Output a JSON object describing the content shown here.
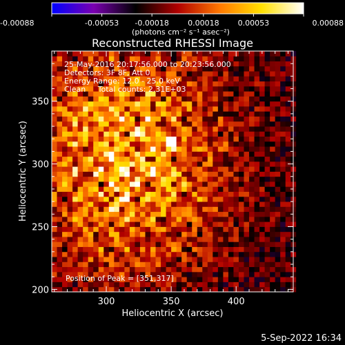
{
  "chart_data": {
    "type": "heatmap",
    "title": "Reconstructed RHESSI Image",
    "xlabel": "Heliocentric X (arcsec)",
    "ylabel": "Heliocentric Y (arcsec)",
    "xlim": [
      258,
      444
    ],
    "ylim": [
      198,
      390
    ],
    "x_ticks": [
      300,
      350,
      400
    ],
    "y_ticks": [
      200,
      250,
      300,
      350
    ],
    "colorbar": {
      "min": -0.00088,
      "max": 0.00088,
      "tick_values": [
        -0.00088,
        -0.00053,
        -0.00018,
        0.00018,
        0.00053,
        0.00088
      ],
      "tick_labels": [
        "-0.00088",
        "-0.00053",
        "-0.00018",
        "0.00018",
        "0.00053",
        "0.00088"
      ],
      "units": "(photons cm⁻² s⁻¹ asec⁻²)",
      "colormap": [
        "#0000ff",
        "#7a00b0",
        "#000000",
        "#b00000",
        "#ff7800",
        "#ffe000",
        "#ffffff"
      ]
    },
    "annotations": [
      "25-May-2016 20:17:56.000 to 20:23:56.000",
      "Detectors: 3F 8F, Att 0",
      "Energy Range: 12.0 - 25.0 keV",
      "Clean     Total counts: 2.31E+03"
    ],
    "peak_label": "Position of Peak = [351,317]",
    "peak": [
      351,
      317
    ],
    "cell_size_arcsec": 4,
    "grid_on": false
  },
  "footer": {
    "timestamp": "5-Sep-2022 16:34"
  }
}
